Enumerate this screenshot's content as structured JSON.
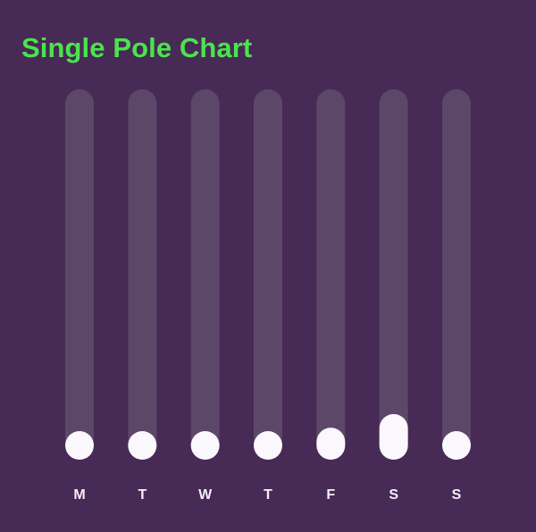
{
  "title": "Single Pole Chart",
  "colors": {
    "background": "#472a55",
    "title": "#4be34e",
    "track": "#5d4769",
    "fill": "#fbf8fd",
    "label": "#f5eff8"
  },
  "chart_data": {
    "type": "bar",
    "title": "Single Pole Chart",
    "categories": [
      "M",
      "T",
      "W",
      "T",
      "F",
      "S",
      "S"
    ],
    "values": [
      0.0,
      0.0,
      0.0,
      0.0,
      0.01,
      0.05,
      0.0
    ],
    "xlabel": "",
    "ylabel": "",
    "ylim": [
      0,
      1
    ],
    "grid": false,
    "legend": "none"
  }
}
